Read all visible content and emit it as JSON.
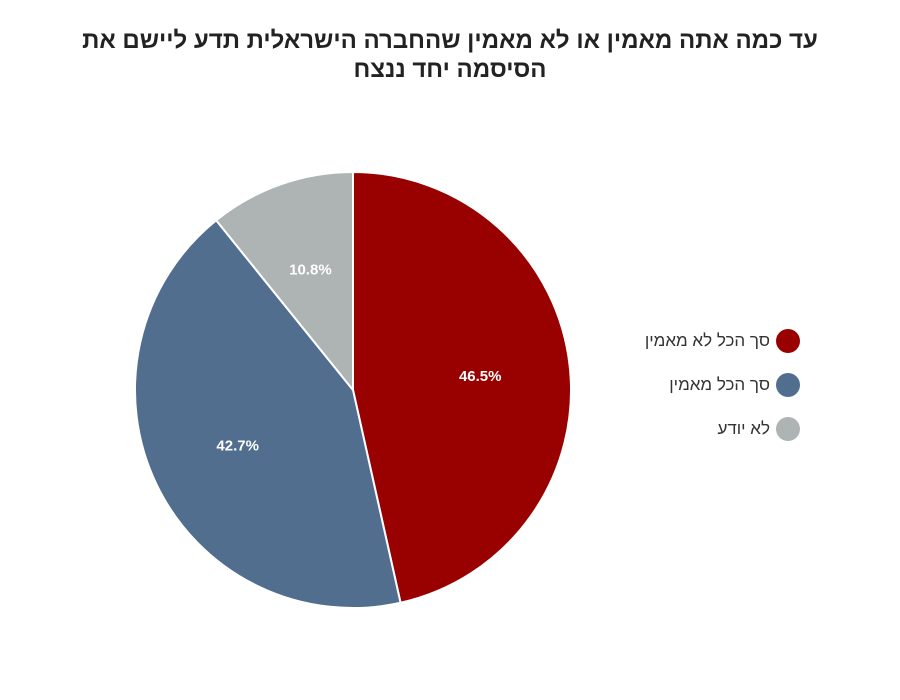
{
  "chart_data": {
    "type": "pie",
    "title": "עד כמה אתה מאמין או לא מאמין שהחברה הישראלית תדע ליישם את הסיסמה יחד ננצח",
    "slices": [
      {
        "label": "סך הכל לא מאמין",
        "value": 46.5,
        "display": "46.5%",
        "color": "#990000"
      },
      {
        "label": "סך הכל מאמין",
        "value": 42.7,
        "display": "42.7%",
        "color": "#516e8f"
      },
      {
        "label": "לא יודע",
        "value": 10.8,
        "display": "10.8%",
        "color": "#aeb3b3"
      }
    ],
    "legend": "right",
    "start_angle": "12 o'clock, clockwise"
  }
}
